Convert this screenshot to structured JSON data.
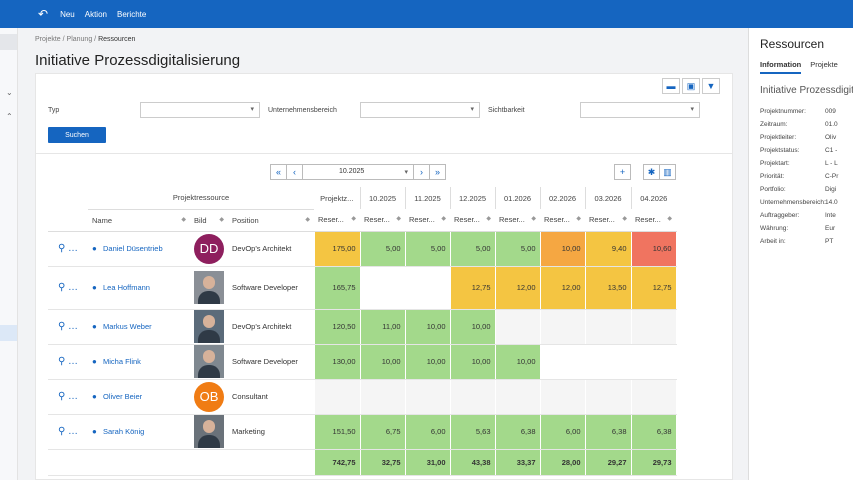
{
  "toolbar": {
    "new": "Neu",
    "action": "Aktion",
    "reports": "Berichte"
  },
  "breadcrumb": {
    "p1": "Projekte",
    "p2": "Planung",
    "p3": "Ressourcen"
  },
  "page_title": "Initiative Prozessdigitalisierung",
  "filters": {
    "typ": "Typ",
    "unit": "Unternehmensbereich",
    "visibility": "Sichtbarkeit",
    "search": "Suchen"
  },
  "pager": {
    "period": "10.2025"
  },
  "grid": {
    "group_header": "Projektressource",
    "project_col": "Projektz...",
    "months": [
      "10.2025",
      "11.2025",
      "12.2025",
      "01.2026",
      "02.2026",
      "03.2026",
      "04.2026"
    ],
    "columns": {
      "name": "Name",
      "image": "Bild",
      "position": "Position",
      "reserve": "Reser..."
    },
    "rows": [
      {
        "name": "Daniel Düsentrieb",
        "avatar": "DD",
        "avatar_color": "#8e1f5e",
        "position": "DevOp's Architekt",
        "total": "175,00",
        "values": [
          "5,00",
          "5,00",
          "5,00",
          "5,00",
          "10,00",
          "9,40",
          "10,60"
        ]
      },
      {
        "name": "Lea Hoffmann",
        "avatar": "",
        "position": "Software Developer",
        "total": "165,75",
        "values": [
          "",
          "",
          "12,75",
          "12,00",
          "12,00",
          "13,50",
          "12,75"
        ]
      },
      {
        "name": "Markus Weber",
        "avatar": "",
        "position": "DevOp's Architekt",
        "total": "120,50",
        "values": [
          "11,00",
          "10,00",
          "10,00",
          "",
          "",
          "",
          ""
        ]
      },
      {
        "name": "Micha Flink",
        "avatar": "",
        "position": "Software Developer",
        "total": "130,00",
        "values": [
          "10,00",
          "10,00",
          "10,00",
          "10,00",
          "",
          "",
          ""
        ]
      },
      {
        "name": "Oliver Beier",
        "avatar": "OB",
        "avatar_color": "#f07c14",
        "position": "Consultant",
        "total": "",
        "values": [
          "",
          "",
          "",
          "",
          "",
          "",
          ""
        ]
      },
      {
        "name": "Sarah König",
        "avatar": "",
        "position": "Marketing",
        "total": "151,50",
        "values": [
          "6,75",
          "6,00",
          "5,63",
          "6,38",
          "6,00",
          "6,38",
          "6,38"
        ]
      }
    ],
    "totals": {
      "total": "742,75",
      "values": [
        "32,75",
        "31,00",
        "43,38",
        "33,37",
        "28,00",
        "29,27",
        "29,73"
      ]
    }
  },
  "right_panel": {
    "title": "Ressourcen",
    "tabs": [
      "Information",
      "Projekte"
    ],
    "subtitle": "Initiative Prozessdigita",
    "info": [
      {
        "k": "Projektnummer:",
        "v": "009"
      },
      {
        "k": "Zeitraum:",
        "v": "01.0"
      },
      {
        "k": "Projektleiter:",
        "v": "Oliv"
      },
      {
        "k": "Projektstatus:",
        "v": "C1 -"
      },
      {
        "k": "Projektart:",
        "v": "L - L"
      },
      {
        "k": "Priorität:",
        "v": "C-Pr"
      },
      {
        "k": "Portfolio:",
        "v": "Digi"
      },
      {
        "k": "Unternehmensbereich:",
        "v": "14.0"
      },
      {
        "k": "Auftraggeber:",
        "v": "Inte"
      },
      {
        "k": "Währung:",
        "v": "Eur"
      },
      {
        "k": "Arbeit in:",
        "v": "PT"
      }
    ]
  }
}
